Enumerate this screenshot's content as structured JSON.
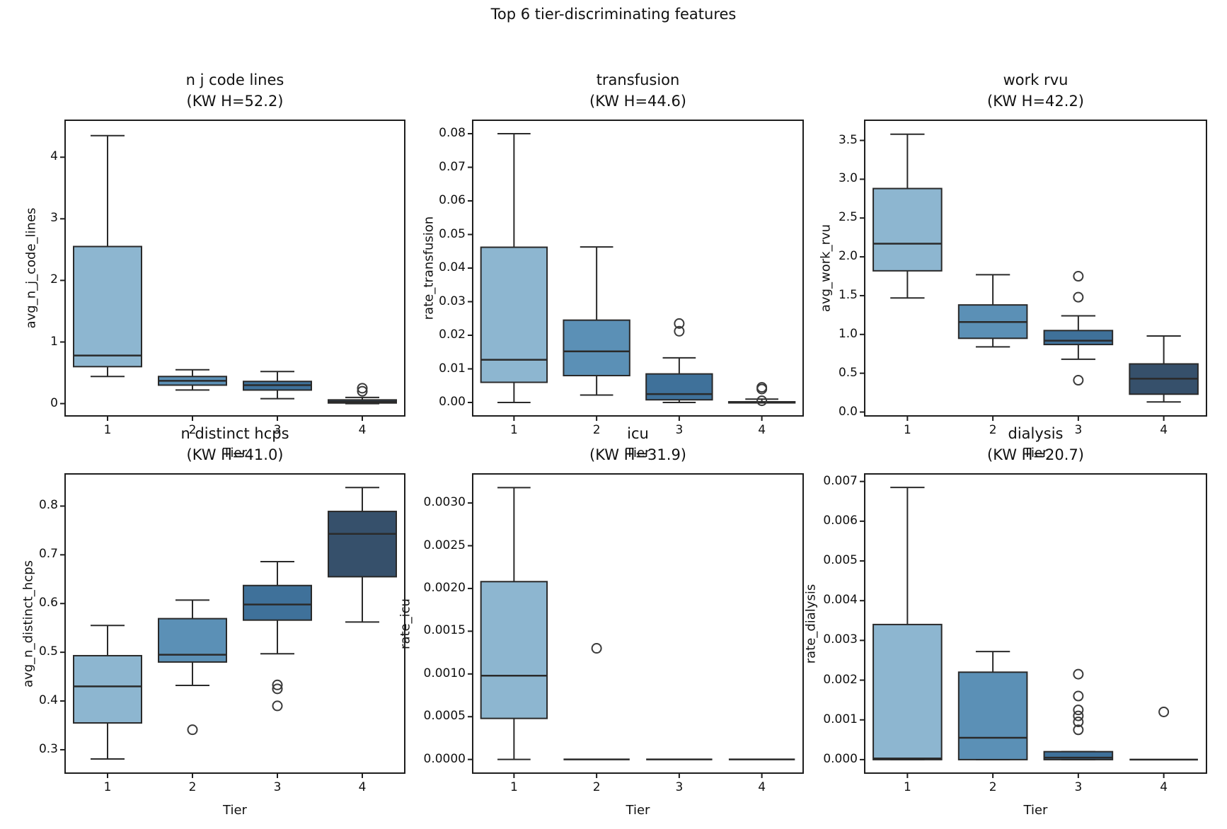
{
  "figure_title": "Top 6 tier-discriminating features",
  "chart_data": {
    "type": "bar",
    "chart_kind": "boxplot-grid",
    "suptitle": "Top 6 tier-discriminating features",
    "xlabel_shared": "Tier",
    "categories": [
      "1",
      "2",
      "3",
      "4"
    ],
    "palette": [
      "#8DB6D0",
      "#5B90B6",
      "#3F719A",
      "#36506B"
    ],
    "line_color": "#2a2a2a",
    "spine_color": "#1e1e1e",
    "outlier_color": "#3a3a3a",
    "subplots": [
      {
        "feature": "n j code lines",
        "title_line1": "n j code lines",
        "title_line2": "(KW H=52.2)",
        "kw_h": 52.2,
        "ylabel": "avg_n_j_code_lines",
        "xlabel": "Tier",
        "ylim": [
          -0.2,
          4.6
        ],
        "ytick_values": [
          0,
          1,
          2,
          3,
          4
        ],
        "ytick_labels": [
          "0",
          "1",
          "2",
          "3",
          "4"
        ],
        "boxes": [
          {
            "tier": "1",
            "lo": 0.44,
            "q1": 0.6,
            "med": 0.78,
            "q3": 2.55,
            "hi": 4.35,
            "outliers": []
          },
          {
            "tier": "2",
            "lo": 0.22,
            "q1": 0.3,
            "med": 0.37,
            "q3": 0.44,
            "hi": 0.55,
            "outliers": []
          },
          {
            "tier": "3",
            "lo": 0.08,
            "q1": 0.22,
            "med": 0.3,
            "q3": 0.36,
            "hi": 0.52,
            "outliers": []
          },
          {
            "tier": "4",
            "lo": 0.0,
            "q1": 0.01,
            "med": 0.03,
            "q3": 0.06,
            "hi": 0.1,
            "outliers": [
              0.2,
              0.25
            ]
          }
        ]
      },
      {
        "feature": "transfusion",
        "title_line1": "transfusion",
        "title_line2": "(KW H=44.6)",
        "kw_h": 44.6,
        "ylabel": "rate_transfusion",
        "xlabel": "Tier",
        "ylim": [
          -0.004,
          0.084
        ],
        "ytick_values": [
          0.0,
          0.01,
          0.02,
          0.03,
          0.04,
          0.05,
          0.06,
          0.07,
          0.08
        ],
        "ytick_labels": [
          "0.00",
          "0.01",
          "0.02",
          "0.03",
          "0.04",
          "0.05",
          "0.06",
          "0.07",
          "0.08"
        ],
        "boxes": [
          {
            "tier": "1",
            "lo": 0.0,
            "q1": 0.006,
            "med": 0.0127,
            "q3": 0.0462,
            "hi": 0.08,
            "outliers": []
          },
          {
            "tier": "2",
            "lo": 0.0022,
            "q1": 0.008,
            "med": 0.0152,
            "q3": 0.0245,
            "hi": 0.0463,
            "outliers": []
          },
          {
            "tier": "3",
            "lo": 0.0,
            "q1": 0.0008,
            "med": 0.0025,
            "q3": 0.0085,
            "hi": 0.0133,
            "outliers": [
              0.0212,
              0.0235
            ]
          },
          {
            "tier": "4",
            "lo": 0.0,
            "q1": 0.0,
            "med": 0.0001,
            "q3": 0.0002,
            "hi": 0.001,
            "outliers": [
              0.0005,
              0.004,
              0.0045
            ]
          }
        ]
      },
      {
        "feature": "work rvu",
        "title_line1": "work rvu",
        "title_line2": "(KW H=42.2)",
        "kw_h": 42.2,
        "ylabel": "avg_work_rvu",
        "xlabel": "Tier",
        "ylim": [
          -0.05,
          3.76
        ],
        "ytick_values": [
          0.0,
          0.5,
          1.0,
          1.5,
          2.0,
          2.5,
          3.0,
          3.5
        ],
        "ytick_labels": [
          "0.0",
          "0.5",
          "1.0",
          "1.5",
          "2.0",
          "2.5",
          "3.0",
          "3.5"
        ],
        "boxes": [
          {
            "tier": "1",
            "lo": 1.47,
            "q1": 1.82,
            "med": 2.17,
            "q3": 2.88,
            "hi": 3.58,
            "outliers": []
          },
          {
            "tier": "2",
            "lo": 0.84,
            "q1": 0.95,
            "med": 1.16,
            "q3": 1.38,
            "hi": 1.77,
            "outliers": []
          },
          {
            "tier": "3",
            "lo": 0.68,
            "q1": 0.87,
            "med": 0.92,
            "q3": 1.05,
            "hi": 1.24,
            "outliers": [
              0.41,
              1.48,
              1.75
            ]
          },
          {
            "tier": "4",
            "lo": 0.13,
            "q1": 0.23,
            "med": 0.43,
            "q3": 0.62,
            "hi": 0.98,
            "outliers": []
          }
        ]
      },
      {
        "feature": "n distinct hcps",
        "title_line1": "n distinct hcps",
        "title_line2": "(KW H=41.0)",
        "kw_h": 41.0,
        "ylabel": "avg_n_distinct_hcps",
        "xlabel": "Tier",
        "ylim": [
          0.252,
          0.866
        ],
        "ytick_values": [
          0.3,
          0.4,
          0.5,
          0.6,
          0.7,
          0.8
        ],
        "ytick_labels": [
          "0.3",
          "0.4",
          "0.5",
          "0.6",
          "0.7",
          "0.8"
        ],
        "boxes": [
          {
            "tier": "1",
            "lo": 0.281,
            "q1": 0.355,
            "med": 0.43,
            "q3": 0.493,
            "hi": 0.555,
            "outliers": []
          },
          {
            "tier": "2",
            "lo": 0.432,
            "q1": 0.48,
            "med": 0.495,
            "q3": 0.569,
            "hi": 0.607,
            "outliers": [
              0.341
            ]
          },
          {
            "tier": "3",
            "lo": 0.497,
            "q1": 0.566,
            "med": 0.598,
            "q3": 0.637,
            "hi": 0.686,
            "outliers": [
              0.39,
              0.425,
              0.433
            ]
          },
          {
            "tier": "4",
            "lo": 0.562,
            "q1": 0.655,
            "med": 0.743,
            "q3": 0.789,
            "hi": 0.838,
            "outliers": []
          }
        ]
      },
      {
        "feature": "icu",
        "title_line1": "icu",
        "title_line2": "(KW H=31.9)",
        "kw_h": 31.9,
        "ylabel": "rate_icu",
        "xlabel": "Tier",
        "ylim": [
          -0.00016,
          0.00334
        ],
        "ytick_values": [
          0.0,
          0.0005,
          0.001,
          0.0015,
          0.002,
          0.0025,
          0.003
        ],
        "ytick_labels": [
          "0.0000",
          "0.0005",
          "0.0010",
          "0.0015",
          "0.0020",
          "0.0025",
          "0.0030"
        ],
        "boxes": [
          {
            "tier": "1",
            "lo": 0.0,
            "q1": 0.00048,
            "med": 0.00098,
            "q3": 0.00208,
            "hi": 0.00318,
            "outliers": []
          },
          {
            "tier": "2",
            "lo": 0.0,
            "q1": 0.0,
            "med": 0.0,
            "q3": 0.0,
            "hi": 0.0,
            "outliers": [
              0.0013
            ]
          },
          {
            "tier": "3",
            "lo": 0.0,
            "q1": 0.0,
            "med": 0.0,
            "q3": 0.0,
            "hi": 0.0,
            "outliers": []
          },
          {
            "tier": "4",
            "lo": 0.0,
            "q1": 0.0,
            "med": 0.0,
            "q3": 0.0,
            "hi": 0.0,
            "outliers": []
          }
        ]
      },
      {
        "feature": "dialysis",
        "title_line1": "dialysis",
        "title_line2": "(KW H=20.7)",
        "kw_h": 20.7,
        "ylabel": "rate_dialysis",
        "xlabel": "Tier",
        "ylim": [
          -0.00034,
          0.00719
        ],
        "ytick_values": [
          0.0,
          0.001,
          0.002,
          0.003,
          0.004,
          0.005,
          0.006,
          0.007
        ],
        "ytick_labels": [
          "0.000",
          "0.001",
          "0.002",
          "0.003",
          "0.004",
          "0.005",
          "0.006",
          "0.007"
        ],
        "boxes": [
          {
            "tier": "1",
            "lo": 0.0,
            "q1": 0.0,
            "med": 3e-05,
            "q3": 0.0034,
            "hi": 0.00685,
            "outliers": []
          },
          {
            "tier": "2",
            "lo": 0.0,
            "q1": 0.0,
            "med": 0.00055,
            "q3": 0.0022,
            "hi": 0.00272,
            "outliers": []
          },
          {
            "tier": "3",
            "lo": 0.0,
            "q1": 0.0,
            "med": 5e-05,
            "q3": 0.0002,
            "hi": 0.0002,
            "outliers": [
              0.00075,
              0.00095,
              0.0011,
              0.00125,
              0.0016,
              0.00215
            ]
          },
          {
            "tier": "4",
            "lo": 0.0,
            "q1": 0.0,
            "med": 0.0,
            "q3": 0.0,
            "hi": 0.0,
            "outliers": [
              0.0012
            ]
          }
        ]
      }
    ]
  }
}
